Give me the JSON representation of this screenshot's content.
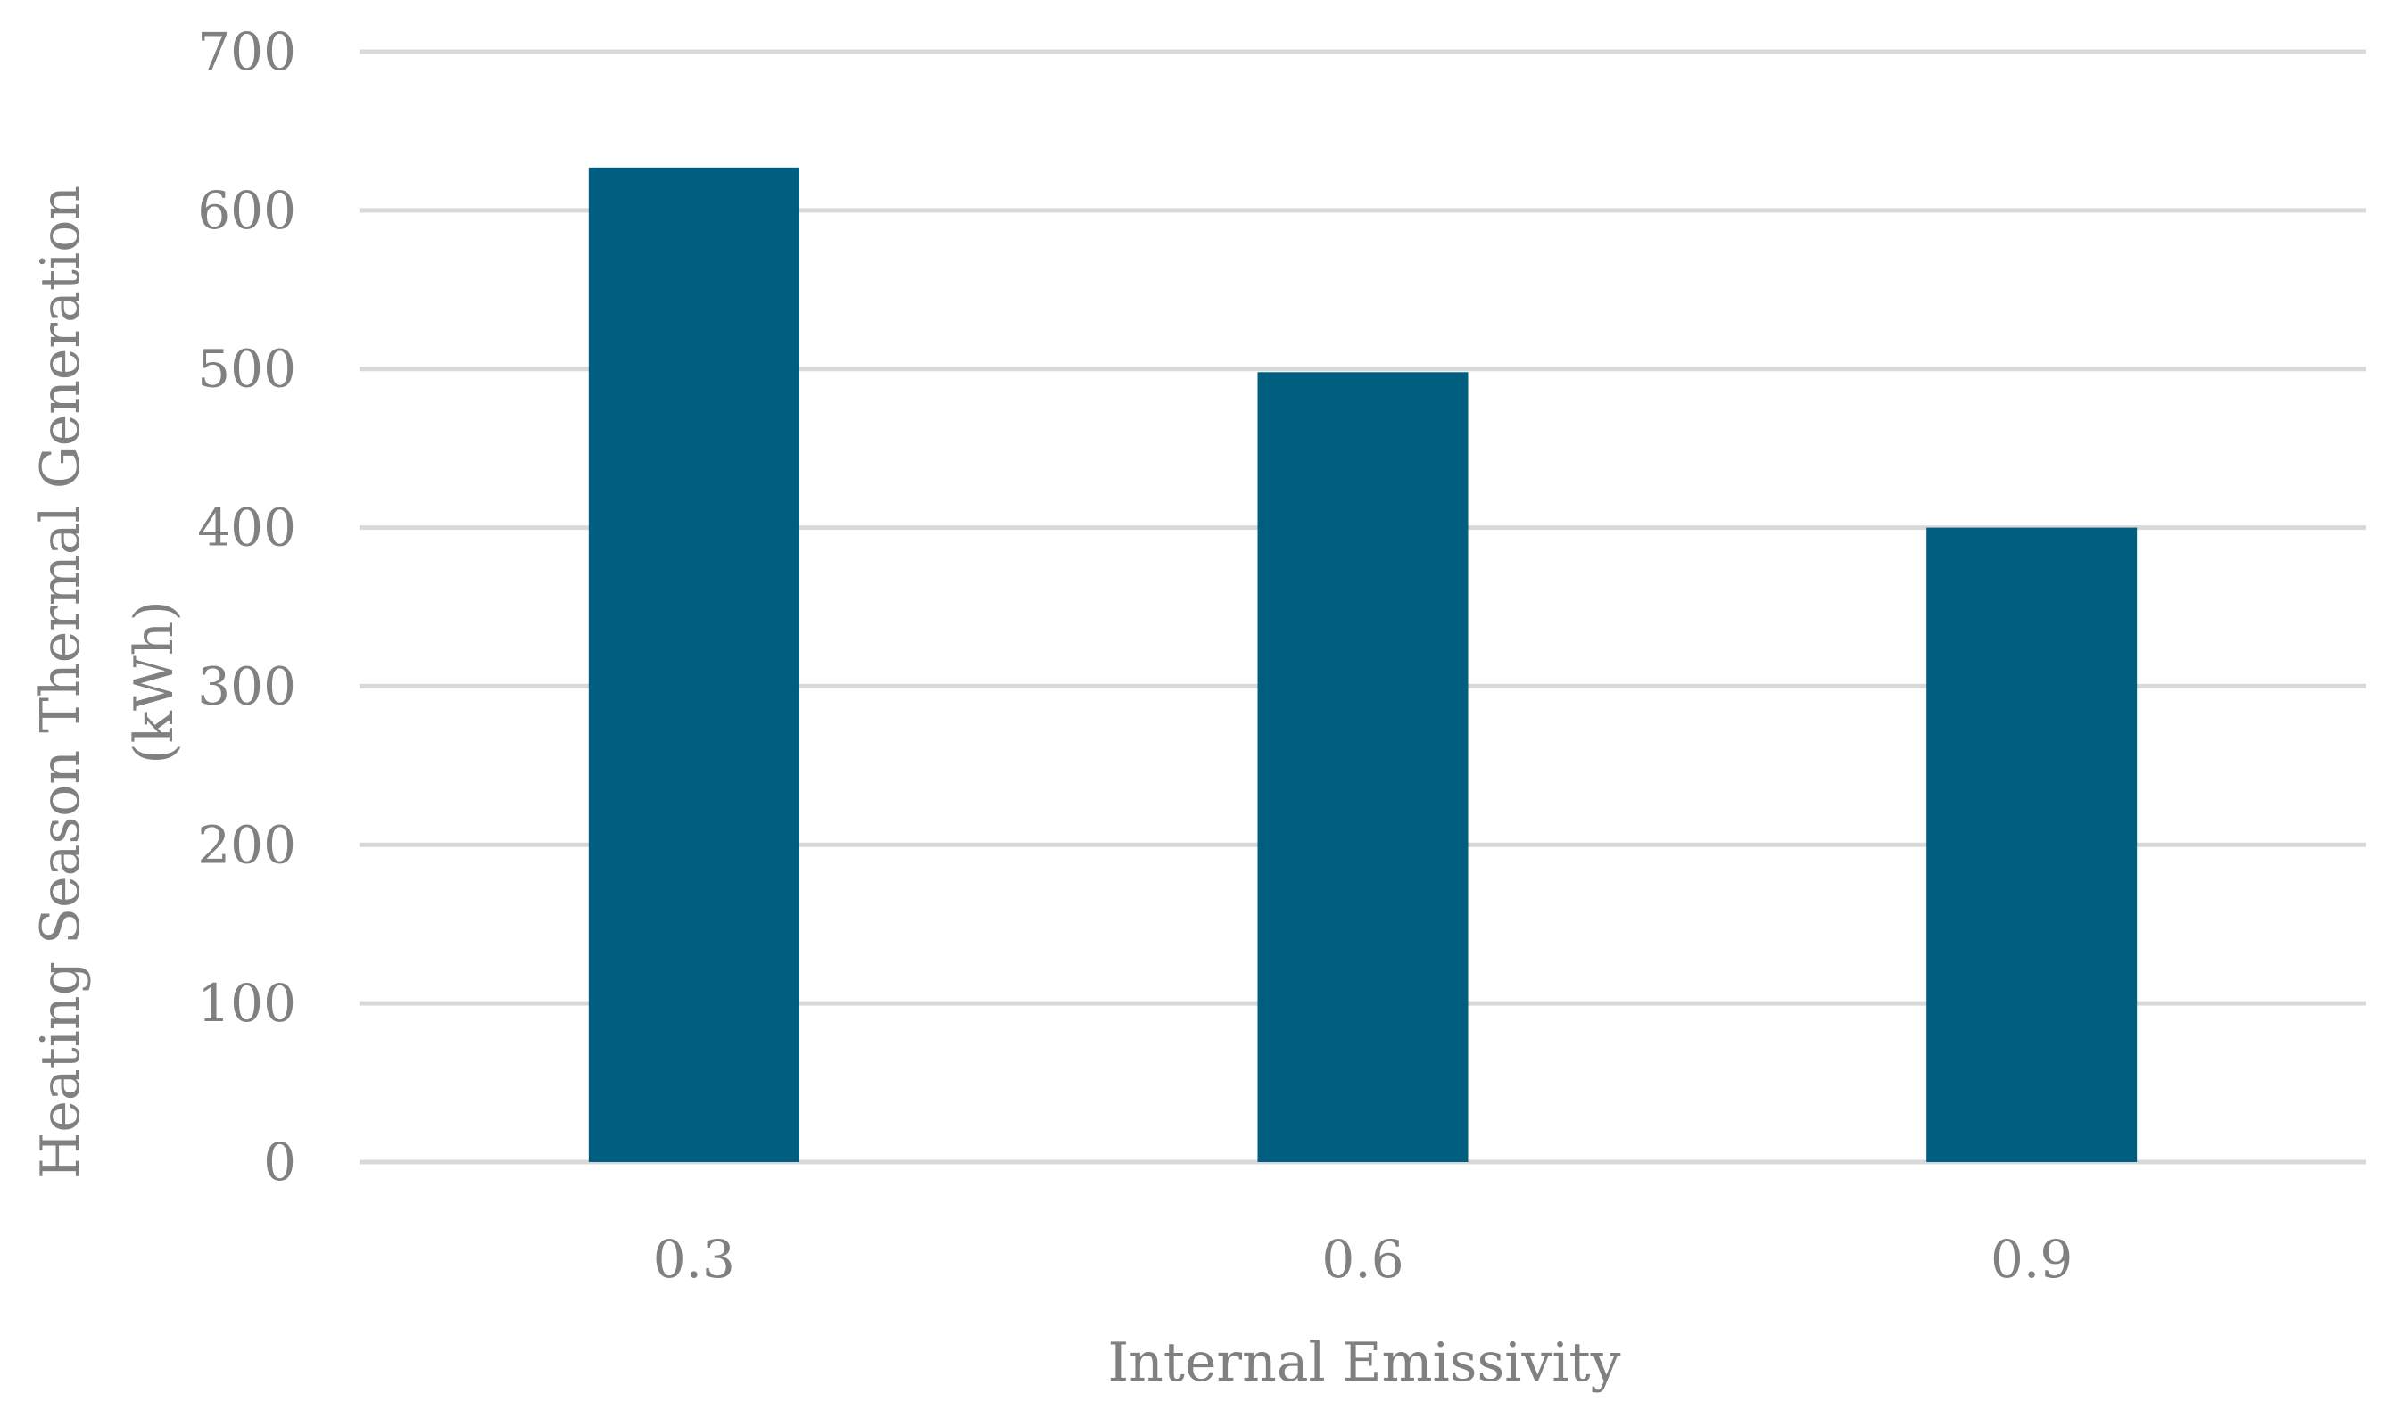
{
  "chart_data": {
    "type": "bar",
    "categories": [
      "0.3",
      "0.6",
      "0.9"
    ],
    "values": [
      627,
      498,
      400
    ],
    "xlabel": "Internal Emissivity",
    "ylabel_lines": [
      "Heating Season Thermal Generation",
      "(kWh)"
    ],
    "ylim": [
      0,
      700
    ],
    "yticks": [
      0,
      100,
      200,
      300,
      400,
      500,
      600,
      700
    ],
    "ytick_labels": [
      "0",
      "100",
      "200",
      "300",
      "400",
      "500",
      "600",
      "700"
    ],
    "grid": true,
    "legend": "none",
    "bar_color": "#005f80",
    "grid_color": "#d9d9d9",
    "text_color": "#808080"
  }
}
